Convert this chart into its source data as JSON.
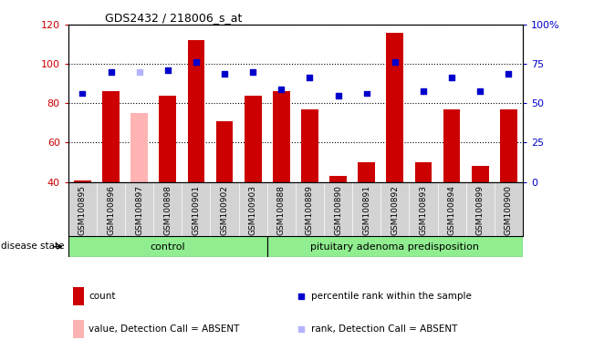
{
  "title": "GDS2432 / 218006_s_at",
  "samples": [
    "GSM100895",
    "GSM100896",
    "GSM100897",
    "GSM100898",
    "GSM100901",
    "GSM100902",
    "GSM100903",
    "GSM100888",
    "GSM100889",
    "GSM100890",
    "GSM100891",
    "GSM100892",
    "GSM100893",
    "GSM100894",
    "GSM100899",
    "GSM100900"
  ],
  "bar_values": [
    41,
    86,
    75,
    84,
    112,
    71,
    84,
    86,
    77,
    43,
    50,
    116,
    50,
    77,
    48,
    77
  ],
  "bar_colors": [
    "#cc0000",
    "#cc0000",
    "#ffb3b3",
    "#cc0000",
    "#cc0000",
    "#cc0000",
    "#cc0000",
    "#cc0000",
    "#cc0000",
    "#cc0000",
    "#cc0000",
    "#cc0000",
    "#cc0000",
    "#cc0000",
    "#cc0000",
    "#cc0000"
  ],
  "dot_values": [
    85,
    96,
    96,
    97,
    101,
    95,
    96,
    87,
    93,
    84,
    85,
    101,
    86,
    93,
    86,
    95
  ],
  "dot_colors": [
    "#0000cc",
    "#0000cc",
    "#b3b3ff",
    "#0000cc",
    "#0000cc",
    "#0000cc",
    "#0000cc",
    "#0000cc",
    "#0000cc",
    "#0000cc",
    "#0000cc",
    "#0000cc",
    "#0000cc",
    "#0000cc",
    "#0000cc",
    "#0000cc"
  ],
  "ylim_left": [
    40,
    120
  ],
  "ylim_right": [
    0,
    100
  ],
  "yticks_left": [
    40,
    60,
    80,
    100,
    120
  ],
  "yticks_right": [
    0,
    25,
    50,
    75,
    100
  ],
  "ytick_labels_right": [
    "0",
    "25",
    "50",
    "75",
    "100%"
  ],
  "control_count": 7,
  "legend_items": [
    {
      "label": "count",
      "color": "#cc0000",
      "type": "bar"
    },
    {
      "label": "percentile rank within the sample",
      "color": "#0000cc",
      "type": "dot"
    },
    {
      "label": "value, Detection Call = ABSENT",
      "color": "#ffb3b3",
      "type": "bar"
    },
    {
      "label": "rank, Detection Call = ABSENT",
      "color": "#b3b3ff",
      "type": "dot"
    }
  ],
  "left_tick_color": "#cc0000",
  "right_tick_color": "#0000cc",
  "group_color": "#90ee90",
  "xtick_bg_color": "#d3d3d3",
  "disease_state_label": "disease state"
}
